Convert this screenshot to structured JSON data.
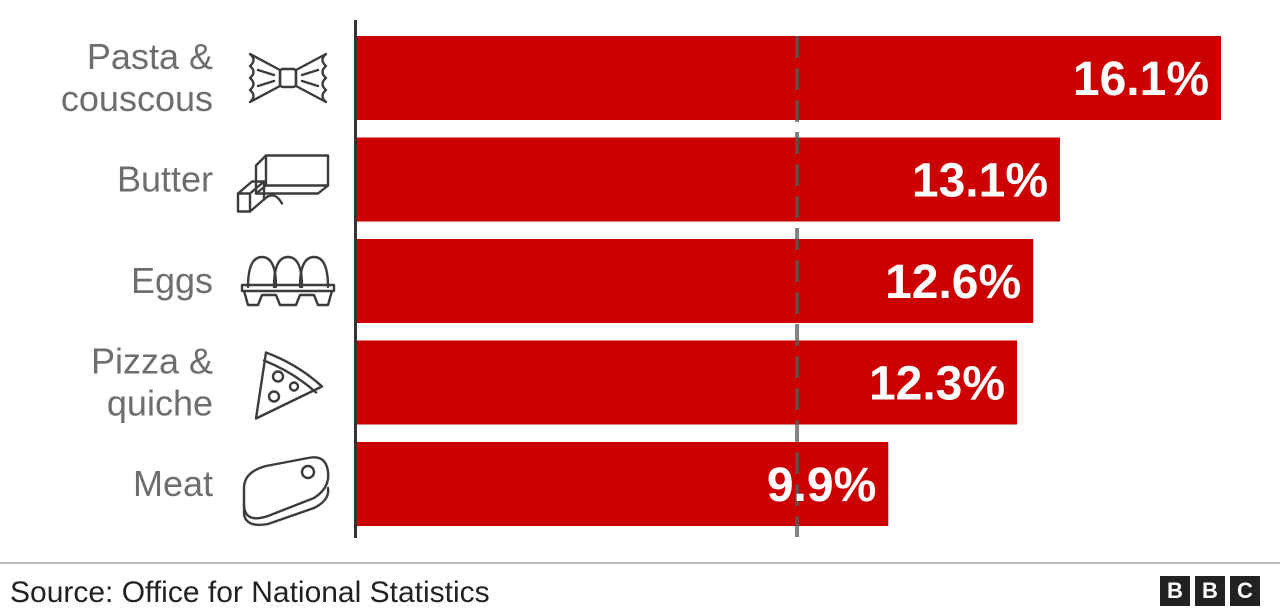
{
  "chart_data": {
    "type": "bar",
    "orientation": "horizontal",
    "categories": [
      [
        "Pasta &",
        "couscous"
      ],
      [
        "Butter"
      ],
      [
        "Eggs"
      ],
      [
        "Pizza &",
        "quiche"
      ],
      [
        "Meat"
      ]
    ],
    "values": [
      16.1,
      13.1,
      12.6,
      12.3,
      9.9
    ],
    "value_labels": [
      "16.1%",
      "13.1%",
      "12.6%",
      "12.3%",
      "9.9%"
    ],
    "icons": [
      "farfalle-pasta-icon",
      "butter-block-icon",
      "egg-carton-icon",
      "pizza-slice-icon",
      "steak-icon"
    ],
    "xlim": [
      0,
      16.1
    ],
    "reference_line": 8.2,
    "bar_color": "#cc0000",
    "grid": false
  },
  "footer": {
    "source": "Source: Office for National Statistics",
    "logo": [
      "B",
      "B",
      "C"
    ]
  }
}
